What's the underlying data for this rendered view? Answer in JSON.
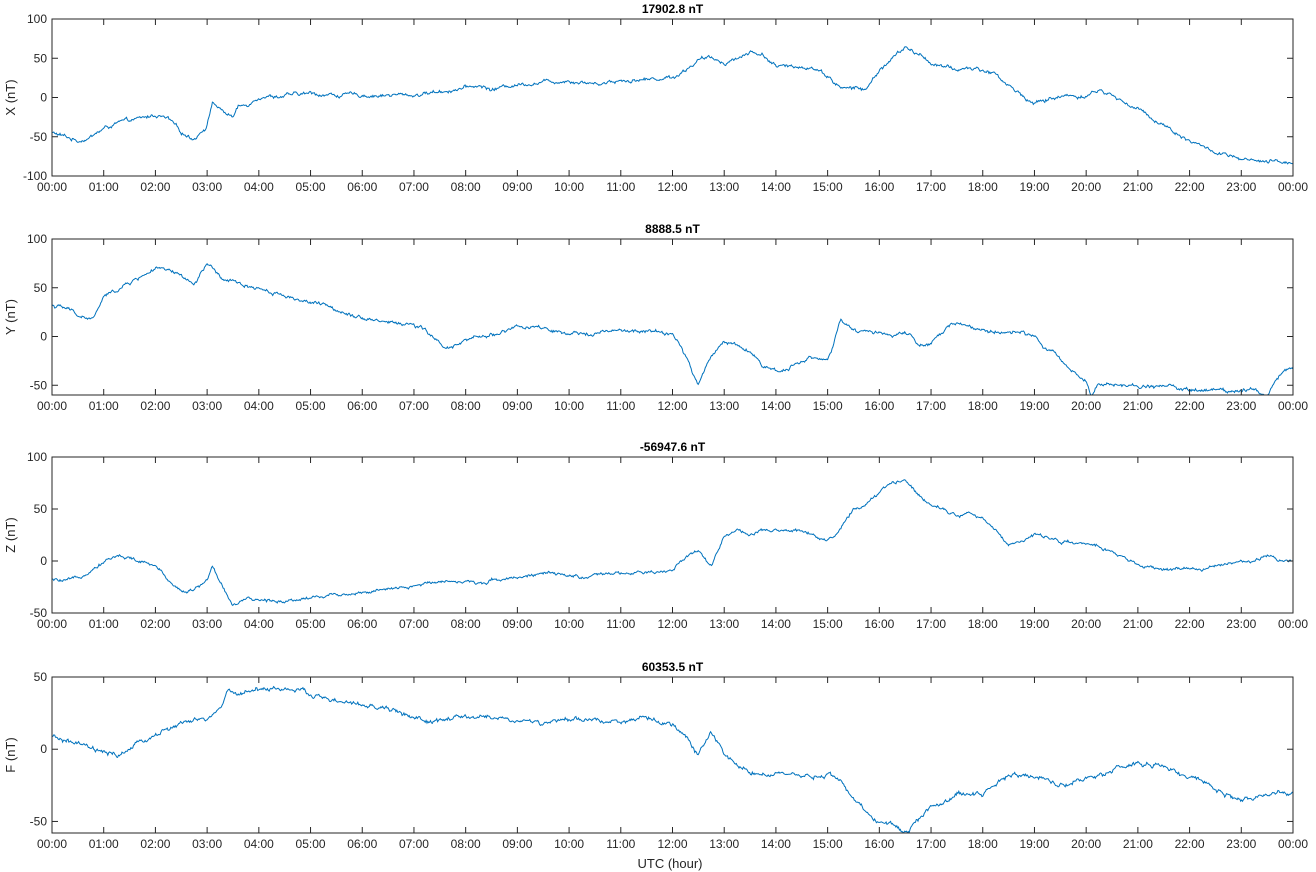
{
  "line_color": "#0072BD",
  "axis_color": "#262626",
  "xlabel": "UTC (hour)",
  "chart_data": [
    {
      "type": "line",
      "title": "17902.8 nT",
      "xlabel": "",
      "ylabel": "X (nT)",
      "ylim": [
        -100,
        100
      ],
      "yticks": [
        -100,
        -50,
        0,
        50,
        100
      ],
      "xlim": [
        0,
        24
      ],
      "xticks": [
        "00:00",
        "01:00",
        "02:00",
        "03:00",
        "04:00",
        "05:00",
        "06:00",
        "07:00",
        "08:00",
        "09:00",
        "10:00",
        "11:00",
        "12:00",
        "13:00",
        "14:00",
        "15:00",
        "16:00",
        "17:00",
        "18:00",
        "19:00",
        "20:00",
        "21:00",
        "22:00",
        "23:00",
        "00:00"
      ],
      "grid": false,
      "noise": 3,
      "series": [
        {
          "x": [
            0,
            0.25,
            0.5,
            0.75,
            1,
            1.25,
            1.5,
            1.75,
            2,
            2.25,
            2.5,
            2.75,
            3,
            3.1,
            3.25,
            3.5,
            3.6,
            3.75,
            4,
            4.5,
            5,
            5.5,
            6,
            6.5,
            7,
            7.5,
            8,
            8.25,
            8.5,
            9,
            9.5,
            10,
            10.5,
            11,
            11.5,
            12,
            12.25,
            12.5,
            12.75,
            13,
            13.25,
            13.5,
            13.75,
            14,
            14.25,
            14.5,
            14.75,
            15,
            15.25,
            15.5,
            15.75,
            16,
            16.25,
            16.5,
            16.75,
            17,
            17.25,
            17.5,
            17.75,
            18,
            18.25,
            18.5,
            19,
            19.5,
            20,
            20.25,
            20.5,
            21,
            21.5,
            22,
            22.5,
            23,
            23.5,
            24
          ],
          "values": [
            -45,
            -50,
            -55,
            -50,
            -40,
            -33,
            -30,
            -27,
            -22,
            -28,
            -45,
            -52,
            -35,
            -5,
            -15,
            -25,
            -12,
            -10,
            2,
            2,
            5,
            3,
            3,
            3,
            3,
            8,
            12,
            15,
            10,
            17,
            20,
            22,
            18,
            22,
            23,
            26,
            35,
            48,
            50,
            45,
            50,
            58,
            55,
            40,
            38,
            40,
            38,
            28,
            12,
            12,
            10,
            35,
            50,
            63,
            55,
            45,
            38,
            35,
            38,
            35,
            30,
            15,
            -8,
            2,
            2,
            10,
            2,
            -15,
            -35,
            -55,
            -70,
            -80,
            -83,
            -82
          ]
        }
      ]
    },
    {
      "type": "line",
      "title": "8888.5 nT",
      "xlabel": "",
      "ylabel": "Y (nT)",
      "ylim": [
        -60,
        100
      ],
      "yticks": [
        -50,
        0,
        50,
        100
      ],
      "xlim": [
        0,
        24
      ],
      "xticks": [
        "00:00",
        "01:00",
        "02:00",
        "03:00",
        "04:00",
        "05:00",
        "06:00",
        "07:00",
        "08:00",
        "09:00",
        "10:00",
        "11:00",
        "12:00",
        "13:00",
        "14:00",
        "15:00",
        "16:00",
        "17:00",
        "18:00",
        "19:00",
        "20:00",
        "21:00",
        "22:00",
        "23:00",
        "00:00"
      ],
      "grid": false,
      "noise": 2.5,
      "series": [
        {
          "x": [
            0,
            0.3,
            0.6,
            0.8,
            1,
            1.5,
            2,
            2.5,
            2.75,
            3,
            3.25,
            3.5,
            4,
            4.5,
            5,
            5.5,
            6,
            6.5,
            7,
            7.25,
            7.5,
            7.75,
            8,
            8.5,
            9,
            9.5,
            10,
            10.5,
            11,
            11.5,
            12,
            12.25,
            12.5,
            12.75,
            13,
            13.25,
            13.5,
            13.75,
            14,
            14.25,
            14.5,
            14.75,
            15,
            15.25,
            15.5,
            15.75,
            16,
            16.25,
            16.5,
            16.75,
            17,
            17.25,
            17.5,
            17.75,
            18,
            18.5,
            19,
            19.5,
            20,
            20.1,
            20.25,
            20.5,
            21,
            21.5,
            22,
            22.5,
            23,
            23.25,
            23.5,
            23.75,
            24
          ],
          "values": [
            32,
            28,
            20,
            18,
            40,
            55,
            70,
            62,
            52,
            75,
            60,
            55,
            50,
            42,
            35,
            28,
            20,
            15,
            12,
            5,
            -8,
            -12,
            -5,
            2,
            10,
            8,
            0,
            5,
            5,
            5,
            3,
            -20,
            -50,
            -20,
            -5,
            -8,
            -15,
            -30,
            -35,
            -32,
            -25,
            -20,
            -25,
            15,
            5,
            5,
            5,
            0,
            5,
            -10,
            -8,
            5,
            15,
            10,
            5,
            5,
            0,
            -25,
            -45,
            -60,
            -45,
            -50,
            -52,
            -50,
            -55,
            -55,
            -55,
            -52,
            -60,
            -40,
            -30
          ]
        }
      ]
    },
    {
      "type": "line",
      "title": "-56947.6 nT",
      "xlabel": "",
      "ylabel": "Z (nT)",
      "ylim": [
        -50,
        100
      ],
      "yticks": [
        -50,
        0,
        50,
        100
      ],
      "xlim": [
        0,
        24
      ],
      "xticks": [
        "00:00",
        "01:00",
        "02:00",
        "03:00",
        "04:00",
        "05:00",
        "06:00",
        "07:00",
        "08:00",
        "09:00",
        "10:00",
        "11:00",
        "12:00",
        "13:00",
        "14:00",
        "15:00",
        "16:00",
        "17:00",
        "18:00",
        "19:00",
        "20:00",
        "21:00",
        "22:00",
        "23:00",
        "00:00"
      ],
      "grid": false,
      "noise": 2,
      "series": [
        {
          "x": [
            0,
            0.25,
            0.5,
            0.75,
            1,
            1.25,
            1.5,
            1.75,
            2,
            2.25,
            2.5,
            2.75,
            3,
            3.1,
            3.25,
            3.5,
            3.75,
            4,
            4.5,
            5,
            5.5,
            6,
            6.5,
            7,
            7.5,
            8,
            8.25,
            8.5,
            9,
            9.5,
            10,
            10.5,
            11,
            11.5,
            12,
            12.25,
            12.5,
            12.75,
            13,
            13.25,
            13.5,
            13.75,
            14,
            14.5,
            15,
            15.25,
            15.5,
            15.75,
            16,
            16.25,
            16.5,
            16.75,
            17,
            17.25,
            17.5,
            17.75,
            18,
            18.25,
            18.5,
            19,
            19.5,
            20,
            20.5,
            21,
            21.5,
            22,
            22.5,
            23,
            23.5,
            24
          ],
          "values": [
            -18,
            -20,
            -17,
            -8,
            0,
            5,
            3,
            -2,
            -5,
            -18,
            -28,
            -28,
            -18,
            -5,
            -20,
            -42,
            -38,
            -38,
            -38,
            -35,
            -32,
            -30,
            -28,
            -25,
            -18,
            -20,
            -22,
            -18,
            -15,
            -12,
            -15,
            -15,
            -12,
            -12,
            -10,
            5,
            10,
            -5,
            25,
            30,
            25,
            28,
            28,
            30,
            20,
            30,
            50,
            55,
            65,
            75,
            78,
            65,
            55,
            50,
            45,
            45,
            40,
            30,
            15,
            25,
            20,
            15,
            10,
            -5,
            -8,
            -8,
            -5,
            -2,
            5,
            0
          ]
        }
      ]
    },
    {
      "type": "line",
      "title": "60353.5 nT",
      "xlabel": "UTC (hour)",
      "ylabel": "F (nT)",
      "ylim": [
        -58,
        50
      ],
      "yticks": [
        -50,
        0,
        50
      ],
      "xlim": [
        0,
        24
      ],
      "xticks": [
        "00:00",
        "01:00",
        "02:00",
        "03:00",
        "04:00",
        "05:00",
        "06:00",
        "07:00",
        "08:00",
        "09:00",
        "10:00",
        "11:00",
        "12:00",
        "13:00",
        "14:00",
        "15:00",
        "16:00",
        "17:00",
        "18:00",
        "19:00",
        "20:00",
        "21:00",
        "22:00",
        "23:00",
        "00:00"
      ],
      "grid": false,
      "noise": 2,
      "series": [
        {
          "x": [
            0,
            0.25,
            0.5,
            0.75,
            1,
            1.25,
            1.5,
            1.75,
            2,
            2.5,
            3,
            3.25,
            3.4,
            3.5,
            4,
            4.5,
            5,
            5.5,
            6,
            6.5,
            7,
            7.25,
            7.5,
            8,
            8.5,
            9,
            9.5,
            10,
            10.5,
            11,
            11.5,
            12,
            12.25,
            12.5,
            12.75,
            13,
            13.25,
            13.5,
            14,
            14.5,
            15,
            15.25,
            15.5,
            15.75,
            16,
            16.25,
            16.5,
            16.75,
            17,
            17.5,
            18,
            18.5,
            19,
            19.5,
            20,
            20.5,
            21,
            21.5,
            22,
            22.5,
            23,
            23.5,
            24
          ],
          "values": [
            8,
            6,
            3,
            0,
            -3,
            -5,
            0,
            5,
            10,
            18,
            20,
            28,
            40,
            38,
            42,
            42,
            38,
            33,
            30,
            28,
            22,
            18,
            20,
            22,
            22,
            20,
            18,
            20,
            20,
            20,
            20,
            18,
            8,
            -3,
            12,
            -5,
            -10,
            -15,
            -18,
            -20,
            -18,
            -20,
            -35,
            -45,
            -50,
            -52,
            -58,
            -48,
            -40,
            -32,
            -30,
            -18,
            -18,
            -25,
            -20,
            -15,
            -10,
            -12,
            -20,
            -28,
            -35,
            -33,
            -30
          ]
        }
      ]
    }
  ]
}
